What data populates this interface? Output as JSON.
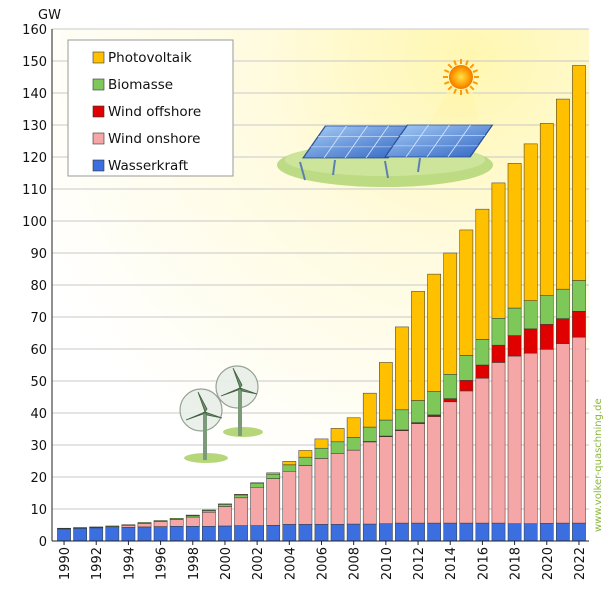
{
  "chart_data": {
    "type": "bar",
    "stacked": true,
    "ylabel": "GW",
    "ylim": [
      0,
      160
    ],
    "yticks": [
      0,
      10,
      20,
      30,
      40,
      50,
      60,
      70,
      80,
      90,
      100,
      110,
      120,
      130,
      140,
      150,
      160
    ],
    "grid": true,
    "legend_position": "top-left",
    "categories": [
      "1990",
      "1991",
      "1992",
      "1993",
      "1994",
      "1995",
      "1996",
      "1997",
      "1998",
      "1999",
      "2000",
      "2001",
      "2002",
      "2003",
      "2004",
      "2005",
      "2006",
      "2007",
      "2008",
      "2009",
      "2010",
      "2011",
      "2012",
      "2013",
      "2014",
      "2015",
      "2016",
      "2017",
      "2018",
      "2019",
      "2020",
      "2021",
      "2022"
    ],
    "xtick_labels": [
      "1990",
      "1992",
      "1994",
      "1996",
      "1998",
      "2000",
      "2002",
      "2004",
      "2006",
      "2008",
      "2010",
      "2012",
      "2014",
      "2016",
      "2018",
      "2020",
      "2022"
    ],
    "series": [
      {
        "name": "Wasserkraft",
        "color": "#3b6fe0",
        "values": [
          3.8,
          4.0,
          4.1,
          4.2,
          4.3,
          4.4,
          4.5,
          4.6,
          4.6,
          4.6,
          4.7,
          4.8,
          4.8,
          4.9,
          5.2,
          5.2,
          5.2,
          5.2,
          5.3,
          5.3,
          5.4,
          5.6,
          5.6,
          5.6,
          5.6,
          5.6,
          5.6,
          5.6,
          5.4,
          5.4,
          5.5,
          5.6,
          5.6
        ]
      },
      {
        "name": "Wind onshore",
        "color": "#f5a6a6",
        "values": [
          0.1,
          0.1,
          0.2,
          0.3,
          0.6,
          1.1,
          1.6,
          2.1,
          2.9,
          4.4,
          6.1,
          8.7,
          12.0,
          14.6,
          16.6,
          18.4,
          20.6,
          22.2,
          23.1,
          25.7,
          27.2,
          28.9,
          31.1,
          33.3,
          37.9,
          41.3,
          45.3,
          50.2,
          52.4,
          53.3,
          54.4,
          56.1,
          58.1
        ]
      },
      {
        "name": "Wind offshore",
        "color": "#e00000",
        "values": [
          0,
          0,
          0,
          0,
          0,
          0,
          0,
          0,
          0,
          0,
          0,
          0,
          0,
          0,
          0,
          0,
          0,
          0,
          0,
          0.1,
          0.2,
          0.2,
          0.3,
          0.5,
          1.0,
          3.3,
          4.1,
          5.4,
          6.4,
          7.6,
          7.8,
          7.8,
          8.1
        ]
      },
      {
        "name": "Biomasse",
        "color": "#7ec85a",
        "values": [
          0.1,
          0.1,
          0.1,
          0.2,
          0.2,
          0.3,
          0.3,
          0.4,
          0.5,
          0.6,
          0.7,
          0.9,
          1.1,
          1.4,
          2.0,
          2.6,
          3.2,
          3.6,
          4.0,
          4.5,
          5.0,
          6.3,
          6.9,
          7.3,
          7.6,
          7.8,
          8.0,
          8.4,
          8.6,
          8.8,
          9.1,
          9.2,
          9.6
        ]
      },
      {
        "name": "Photovoltaik",
        "color": "#ffc000",
        "values": [
          0,
          0,
          0,
          0,
          0,
          0,
          0,
          0,
          0.1,
          0.1,
          0.1,
          0.2,
          0.3,
          0.4,
          1.1,
          2.1,
          2.9,
          4.2,
          6.1,
          10.6,
          18.0,
          25.9,
          34.1,
          36.7,
          37.9,
          39.2,
          40.7,
          42.3,
          45.2,
          49.0,
          53.7,
          59.4,
          67.2
        ]
      }
    ],
    "legend_order": [
      "Photovoltaik",
      "Biomasse",
      "Wind offshore",
      "Wind onshore",
      "Wasserkraft"
    ]
  },
  "watermark": "www.volker-quaschning.de",
  "illustrations": [
    "sun-icon",
    "solar-panels-icon",
    "wind-turbines-icon"
  ]
}
